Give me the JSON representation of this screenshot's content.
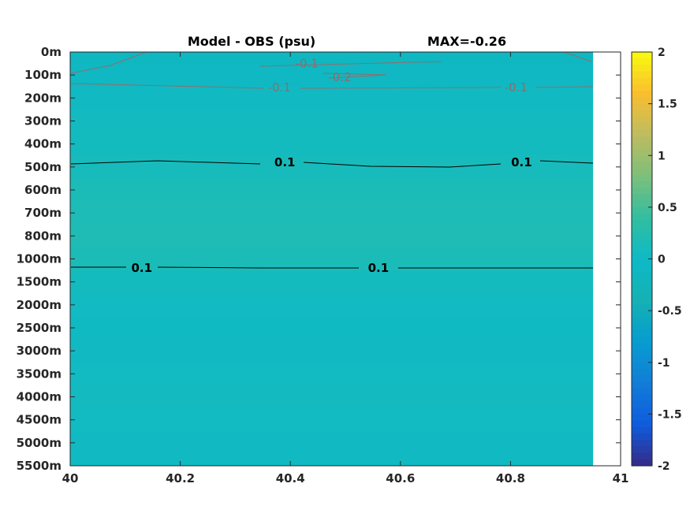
{
  "chart_data": {
    "type": "heatmap",
    "title": "Model - OBS (psu)",
    "max_label": "MAX=-0.26",
    "x_ticks": [
      "40",
      "40.2",
      "40.4",
      "40.6",
      "40.8",
      "41"
    ],
    "xlim": [
      40,
      41
    ],
    "data_x_end": 40.95,
    "y_ticks": [
      "0m",
      "100m",
      "200m",
      "300m",
      "400m",
      "500m",
      "600m",
      "700m",
      "800m",
      "1000m",
      "1500m",
      "2000m",
      "2500m",
      "3000m",
      "3500m",
      "4000m",
      "4500m",
      "5000m",
      "5500m"
    ],
    "y_axis_reversed": true,
    "colorbar": {
      "ticks": [
        "2",
        "1.5",
        "1",
        "0.5",
        "0",
        "-0.5",
        "-1",
        "-1.5",
        "-2"
      ],
      "range": [
        -2,
        2
      ],
      "colormap": "parula"
    },
    "depth_levels": [
      {
        "depth": "0m",
        "value": -0.12
      },
      {
        "depth": "100m",
        "value": -0.1
      },
      {
        "depth": "200m",
        "value": 0.04
      },
      {
        "depth": "300m",
        "value": 0.06
      },
      {
        "depth": "400m",
        "value": 0.08
      },
      {
        "depth": "500m",
        "value": 0.12
      },
      {
        "depth": "600m",
        "value": 0.15
      },
      {
        "depth": "700m",
        "value": 0.17
      },
      {
        "depth": "800m",
        "value": 0.18
      },
      {
        "depth": "1000m",
        "value": 0.15
      },
      {
        "depth": "1500m",
        "value": 0.08
      },
      {
        "depth": "2000m",
        "value": 0.05
      },
      {
        "depth": "2500m",
        "value": 0.03
      },
      {
        "depth": "3000m",
        "value": 0.04
      },
      {
        "depth": "3500m",
        "value": 0.05
      },
      {
        "depth": "4000m",
        "value": 0.06
      },
      {
        "depth": "4500m",
        "value": 0.05
      },
      {
        "depth": "5000m",
        "value": 0.04
      },
      {
        "depth": "5500m",
        "value": 0.04
      }
    ],
    "contour_labels": [
      {
        "text": "-0.1",
        "x": 40.43,
        "depth_index": 0.5
      },
      {
        "text": "-0.2",
        "x": 40.49,
        "depth_index": 1.1
      },
      {
        "text": "-0.1",
        "x": 40.38,
        "depth_index": 1.55
      },
      {
        "text": "-0.1",
        "x": 40.81,
        "depth_index": 1.55
      },
      {
        "text": "0.1",
        "x": 40.39,
        "depth_index": 4.8
      },
      {
        "text": "0.1",
        "x": 40.82,
        "depth_index": 4.8
      },
      {
        "text": "0.1",
        "x": 40.13,
        "depth_index": 9.4
      },
      {
        "text": "0.1",
        "x": 40.56,
        "depth_index": 9.4
      }
    ],
    "xlabel": "",
    "ylabel": ""
  }
}
